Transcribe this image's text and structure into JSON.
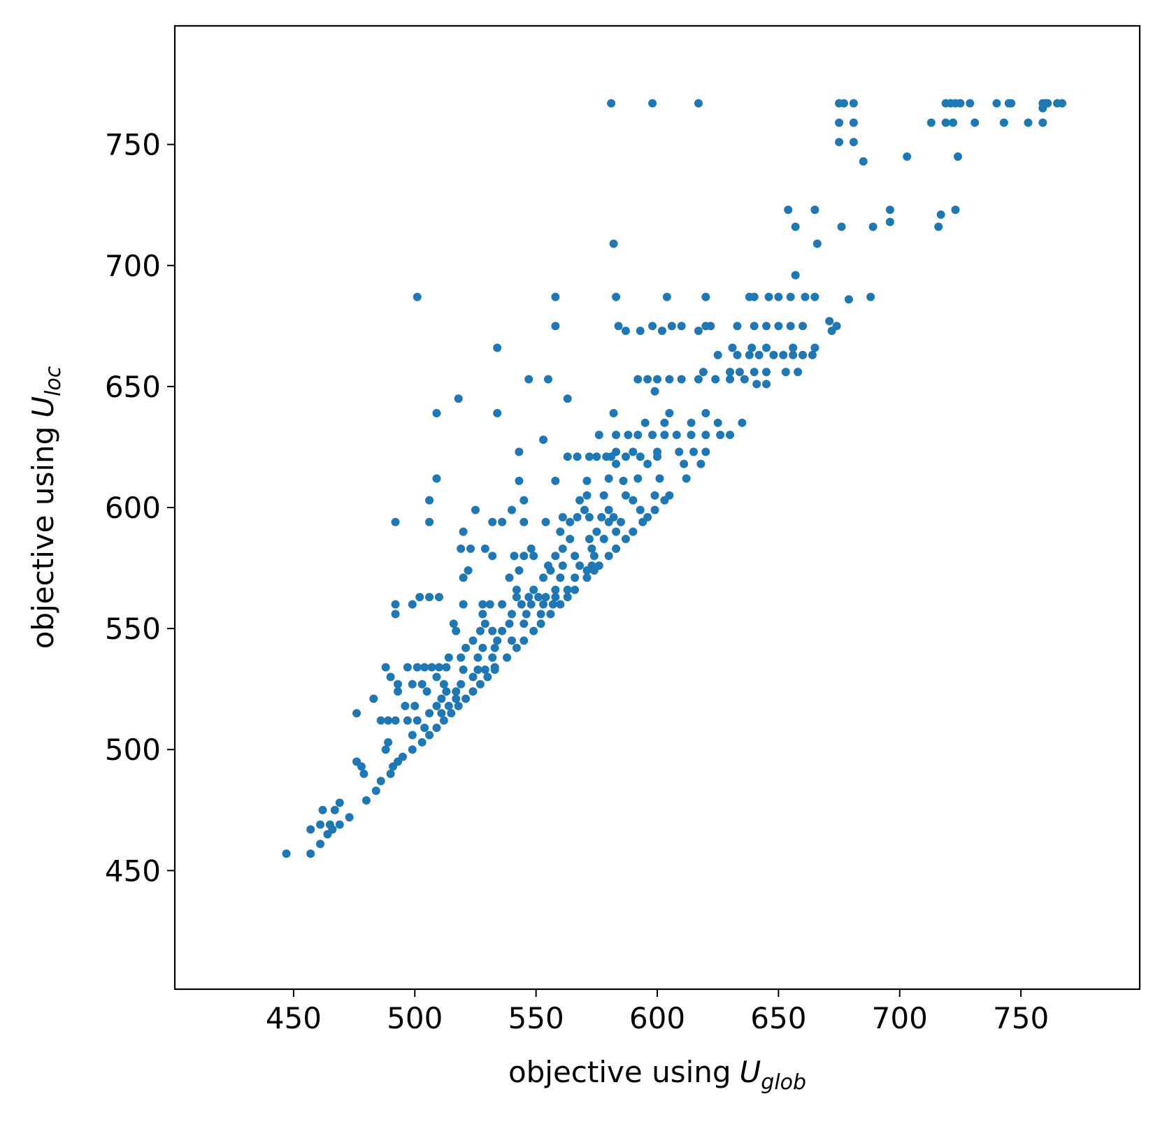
{
  "chart_data": {
    "type": "scatter",
    "xlabel": {
      "text": "objective using",
      "symbol": "U",
      "subscript": "glob"
    },
    "ylabel": {
      "text": "objective using",
      "symbol": "U",
      "subscript": "loc"
    },
    "color": "#1f77b4",
    "xlim": [
      401,
      799
    ],
    "ylim": [
      401,
      799
    ],
    "xticks": [
      450,
      500,
      550,
      600,
      650,
      700,
      750
    ],
    "yticks": [
      450,
      500,
      550,
      600,
      650,
      700,
      750
    ],
    "x": [
      581,
      598,
      617,
      675,
      677,
      681,
      719,
      721,
      723,
      725,
      729,
      740,
      745,
      746,
      759,
      760,
      761,
      765,
      767,
      675,
      681,
      713,
      719,
      722,
      731,
      743,
      753,
      759,
      675,
      681,
      685,
      703,
      724,
      759,
      654,
      665,
      696,
      723,
      717,
      657,
      676,
      689,
      716,
      696,
      582,
      666,
      657,
      501,
      558,
      583,
      604,
      620,
      638,
      640,
      646,
      650,
      655,
      661,
      665,
      688,
      679,
      558,
      584,
      598,
      606,
      610,
      620,
      622,
      633,
      640,
      645,
      650,
      655,
      660,
      674,
      587,
      593,
      602,
      617,
      672,
      671,
      534,
      631,
      639,
      645,
      656,
      665,
      625,
      633,
      638,
      642,
      648,
      652,
      656,
      660,
      664,
      619,
      630,
      634,
      640,
      645,
      653,
      658,
      547,
      555,
      592,
      596,
      600,
      605,
      610,
      617,
      624,
      630,
      636,
      641,
      645,
      518,
      563,
      599,
      509,
      534,
      582,
      605,
      620,
      595,
      603,
      614,
      625,
      635,
      576,
      583,
      588,
      592,
      598,
      603,
      608,
      614,
      620,
      626,
      630,
      543,
      583,
      590,
      600,
      609,
      615,
      620,
      563,
      567,
      572,
      575,
      579,
      581,
      587,
      593,
      600,
      553,
      583,
      596,
      611,
      618,
      509,
      580,
      592,
      601,
      612,
      543,
      558,
      571,
      586,
      571,
      578,
      587,
      599,
      605,
      506,
      545,
      568,
      590,
      603,
      525,
      540,
      570,
      580,
      593,
      599,
      561,
      567,
      572,
      577,
      582,
      596,
      492,
      506,
      532,
      536,
      545,
      554,
      564,
      580,
      585,
      594,
      520,
      560,
      575,
      583,
      590,
      564,
      572,
      578,
      587,
      519,
      523,
      529,
      548,
      561,
      573,
      583,
      532,
      541,
      545,
      549,
      558,
      566,
      574,
      580,
      555,
      561,
      568,
      573,
      576,
      522,
      543,
      556,
      571,
      574,
      520,
      539,
      553,
      560,
      566,
      571,
      542,
      549,
      558,
      563,
      566,
      502,
      506,
      510,
      542,
      547,
      551,
      554,
      558,
      563,
      492,
      499,
      520,
      528,
      531,
      536,
      544,
      548,
      553,
      557,
      560,
      492,
      528,
      540,
      546,
      552,
      556,
      516,
      529,
      539,
      545,
      552,
      517,
      527,
      532,
      536,
      549,
      524,
      534,
      540,
      545,
      521,
      528,
      533,
      542,
      514,
      519,
      526,
      532,
      538,
      488,
      497,
      501,
      504,
      507,
      510,
      513,
      533,
      520,
      526,
      529,
      533,
      490,
      509,
      524,
      530,
      493,
      499,
      503,
      512,
      519,
      527,
      493,
      505,
      513,
      517,
      524,
      483,
      511,
      517,
      521,
      496,
      500,
      509,
      514,
      518,
      476,
      506,
      511,
      515,
      486,
      489,
      492,
      497,
      501,
      512,
      504,
      509,
      499,
      506,
      489,
      503,
      488,
      499,
      495,
      476,
      493,
      478,
      491,
      479,
      490,
      486,
      484,
      480,
      469,
      462,
      467,
      473,
      461,
      465,
      469,
      457,
      466,
      464,
      461,
      447,
      457
    ],
    "values": [
      767,
      767,
      767,
      767,
      767,
      767,
      767,
      767,
      767,
      767,
      767,
      767,
      767,
      767,
      767,
      767,
      767,
      767,
      767,
      759,
      759,
      759,
      759,
      759,
      759,
      759,
      759,
      759,
      751,
      751,
      743,
      745,
      745,
      765,
      723,
      723,
      723,
      723,
      721,
      716,
      716,
      716,
      716,
      718,
      709,
      709,
      696,
      687,
      687,
      687,
      687,
      687,
      687,
      687,
      687,
      687,
      687,
      687,
      687,
      687,
      686,
      675,
      675,
      675,
      675,
      675,
      675,
      675,
      675,
      675,
      675,
      675,
      675,
      675,
      675,
      673,
      673,
      673,
      673,
      673,
      677,
      666,
      666,
      666,
      666,
      666,
      666,
      663,
      663,
      663,
      663,
      663,
      663,
      663,
      663,
      663,
      656,
      656,
      656,
      656,
      656,
      656,
      656,
      653,
      653,
      653,
      653,
      653,
      653,
      653,
      653,
      653,
      653,
      653,
      651,
      651,
      645,
      645,
      648,
      639,
      639,
      639,
      639,
      639,
      635,
      635,
      635,
      635,
      635,
      630,
      630,
      630,
      630,
      630,
      630,
      630,
      630,
      630,
      630,
      630,
      623,
      623,
      623,
      623,
      623,
      623,
      623,
      621,
      621,
      621,
      621,
      621,
      621,
      621,
      621,
      621,
      628,
      618,
      618,
      618,
      618,
      612,
      612,
      612,
      612,
      612,
      611,
      611,
      611,
      611,
      605,
      605,
      605,
      605,
      605,
      603,
      603,
      603,
      603,
      603,
      599,
      599,
      599,
      599,
      599,
      599,
      596,
      596,
      596,
      596,
      596,
      596,
      594,
      594,
      594,
      594,
      594,
      594,
      594,
      594,
      594,
      594,
      590,
      590,
      590,
      590,
      590,
      587,
      587,
      587,
      587,
      583,
      583,
      583,
      583,
      583,
      583,
      583,
      580,
      580,
      580,
      580,
      580,
      580,
      580,
      580,
      576,
      576,
      576,
      576,
      576,
      574,
      574,
      574,
      574,
      574,
      571,
      571,
      571,
      571,
      571,
      571,
      566,
      566,
      566,
      566,
      566,
      563,
      563,
      563,
      563,
      563,
      563,
      563,
      563,
      563,
      560,
      560,
      560,
      560,
      560,
      560,
      560,
      560,
      560,
      560,
      560,
      556,
      556,
      556,
      556,
      556,
      556,
      552,
      552,
      552,
      552,
      552,
      549,
      549,
      549,
      549,
      549,
      545,
      545,
      545,
      545,
      542,
      542,
      542,
      542,
      538,
      538,
      538,
      538,
      538,
      534,
      534,
      534,
      534,
      534,
      534,
      534,
      534,
      533,
      533,
      533,
      533,
      530,
      530,
      530,
      530,
      527,
      527,
      527,
      527,
      527,
      527,
      524,
      524,
      524,
      524,
      524,
      521,
      521,
      521,
      521,
      518,
      518,
      518,
      518,
      518,
      515,
      515,
      515,
      515,
      512,
      512,
      512,
      512,
      512,
      512,
      509,
      509,
      506,
      506,
      503,
      503,
      500,
      500,
      497,
      495,
      495,
      493,
      493,
      490,
      490,
      487,
      483,
      479,
      478,
      475,
      475,
      472,
      469,
      469,
      469,
      467,
      467,
      465,
      461,
      457,
      457
    ]
  }
}
